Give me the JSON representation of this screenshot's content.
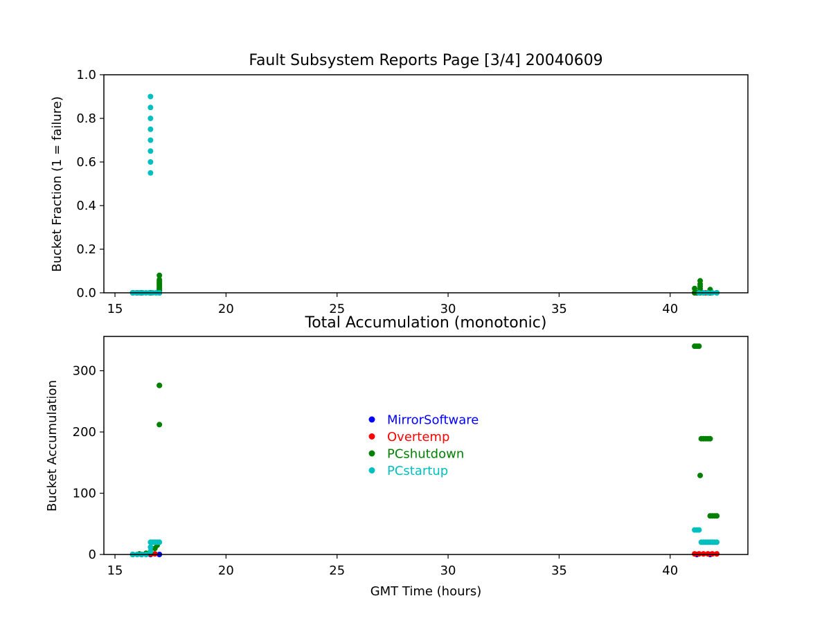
{
  "chart_data": [
    {
      "type": "scatter",
      "title": "Fault Subsystem Reports Page [3/4] 20040609",
      "xlabel": "",
      "ylabel": "Bucket Fraction (1 = failure)",
      "xlim": [
        14.5,
        43.5
      ],
      "ylim": [
        0.0,
        1.0
      ],
      "xticks": [
        15,
        20,
        25,
        30,
        35,
        40
      ],
      "yticks": [
        0.0,
        0.2,
        0.4,
        0.6,
        0.8,
        1.0
      ],
      "xtick_labels": [
        "15",
        "20",
        "25",
        "30",
        "35",
        "40"
      ],
      "ytick_labels": [
        "0.0",
        "0.2",
        "0.4",
        "0.6",
        "0.8",
        "1.0"
      ],
      "grid": false,
      "series": [
        {
          "name": "MirrorSoftware",
          "color": "#0000ff",
          "x": [
            15.8,
            16.2,
            16.6,
            17.0,
            41.2,
            41.8
          ],
          "y": [
            0.0,
            0.0,
            0.0,
            0.0,
            0.0,
            0.0
          ]
        },
        {
          "name": "Overtemp",
          "color": "#ff0000",
          "x": [
            16.0,
            16.6,
            41.1,
            41.6,
            42.1
          ],
          "y": [
            0.0,
            0.0,
            0.0,
            0.0,
            0.0
          ]
        },
        {
          "name": "PCshutdown",
          "color": "#008000",
          "x": [
            15.8,
            16.2,
            16.6,
            17.0,
            17.0,
            17.0,
            17.0,
            17.0,
            17.0,
            17.0,
            17.0,
            17.0,
            17.0,
            17.0,
            17.0,
            17.0,
            17.0,
            41.1,
            41.1,
            41.2,
            41.35,
            41.35,
            41.35,
            41.35,
            41.35,
            41.35,
            41.5,
            41.8,
            41.8,
            42.1
          ],
          "y": [
            0.0,
            0.0,
            0.0,
            0.0,
            0.005,
            0.01,
            0.015,
            0.02,
            0.025,
            0.03,
            0.035,
            0.04,
            0.045,
            0.05,
            0.055,
            0.06,
            0.08,
            0.0,
            0.02,
            0.0,
            0.0,
            0.01,
            0.02,
            0.03,
            0.04,
            0.055,
            0.0,
            0.0,
            0.015,
            0.0
          ]
        },
        {
          "name": "PCstartup",
          "color": "#00bfbf",
          "x": [
            15.8,
            15.95,
            16.1,
            16.25,
            16.4,
            16.55,
            16.6,
            16.6,
            16.6,
            16.6,
            16.6,
            16.6,
            16.6,
            16.6,
            16.7,
            16.85,
            17.0,
            41.3,
            41.5,
            41.7,
            41.9,
            42.1
          ],
          "y": [
            0.0,
            0.0,
            0.0,
            0.0,
            0.0,
            0.0,
            0.55,
            0.6,
            0.65,
            0.7,
            0.75,
            0.8,
            0.85,
            0.9,
            0.0,
            0.0,
            0.0,
            0.0,
            0.0,
            0.0,
            0.0,
            0.0
          ]
        }
      ]
    },
    {
      "type": "scatter",
      "title": "Total Accumulation (monotonic)",
      "xlabel": "GMT Time (hours)",
      "ylabel": "Bucket Accumulation",
      "xlim": [
        14.5,
        43.5
      ],
      "ylim": [
        0,
        356
      ],
      "xticks": [
        15,
        20,
        25,
        30,
        35,
        40
      ],
      "yticks": [
        0,
        100,
        200,
        300
      ],
      "xtick_labels": [
        "15",
        "20",
        "25",
        "30",
        "35",
        "40"
      ],
      "ytick_labels": [
        "0",
        "100",
        "200",
        "300"
      ],
      "grid": false,
      "legend_position": "center",
      "series": [
        {
          "name": "MirrorSoftware",
          "color": "#0000ff",
          "x": [
            15.8,
            16.2,
            16.6,
            17.0,
            41.2,
            41.8
          ],
          "y": [
            0,
            0,
            0,
            0,
            0,
            0
          ]
        },
        {
          "name": "Overtemp",
          "color": "#ff0000",
          "x": [
            16.6,
            16.8,
            41.1,
            41.3,
            41.5,
            41.7,
            41.9,
            42.1
          ],
          "y": [
            1,
            1,
            1,
            1,
            1,
            1,
            1,
            1
          ]
        },
        {
          "name": "PCshutdown",
          "color": "#008000",
          "x": [
            15.8,
            16.1,
            16.4,
            16.6,
            16.8,
            16.9,
            17.0,
            17.0,
            17.0,
            41.1,
            41.2,
            41.3,
            41.35,
            41.4,
            41.5,
            41.6,
            41.7,
            41.8,
            41.8,
            41.9,
            42.0,
            42.1
          ],
          "y": [
            0,
            1,
            2,
            3,
            10,
            15,
            212,
            276,
            276,
            340,
            340,
            340,
            129,
            189,
            189,
            189,
            189,
            189,
            63,
            63,
            63,
            63
          ]
        },
        {
          "name": "PCstartup",
          "color": "#00bfbf",
          "x": [
            15.8,
            16.0,
            16.2,
            16.4,
            16.6,
            16.6,
            16.6,
            16.7,
            16.8,
            16.9,
            17.0,
            41.1,
            41.2,
            41.3,
            41.4,
            41.5,
            41.6,
            41.7,
            41.8,
            41.9,
            42.0,
            42.1
          ],
          "y": [
            0,
            0,
            0,
            0,
            5,
            12,
            20,
            20,
            20,
            20,
            20,
            40,
            40,
            40,
            20,
            20,
            20,
            20,
            20,
            20,
            20,
            20
          ]
        }
      ],
      "legend": [
        {
          "label": "MirrorSoftware",
          "color": "#0000ff"
        },
        {
          "label": "Overtemp",
          "color": "#ff0000"
        },
        {
          "label": "PCshutdown",
          "color": "#008000"
        },
        {
          "label": "PCstartup",
          "color": "#00bfbf"
        }
      ]
    }
  ]
}
